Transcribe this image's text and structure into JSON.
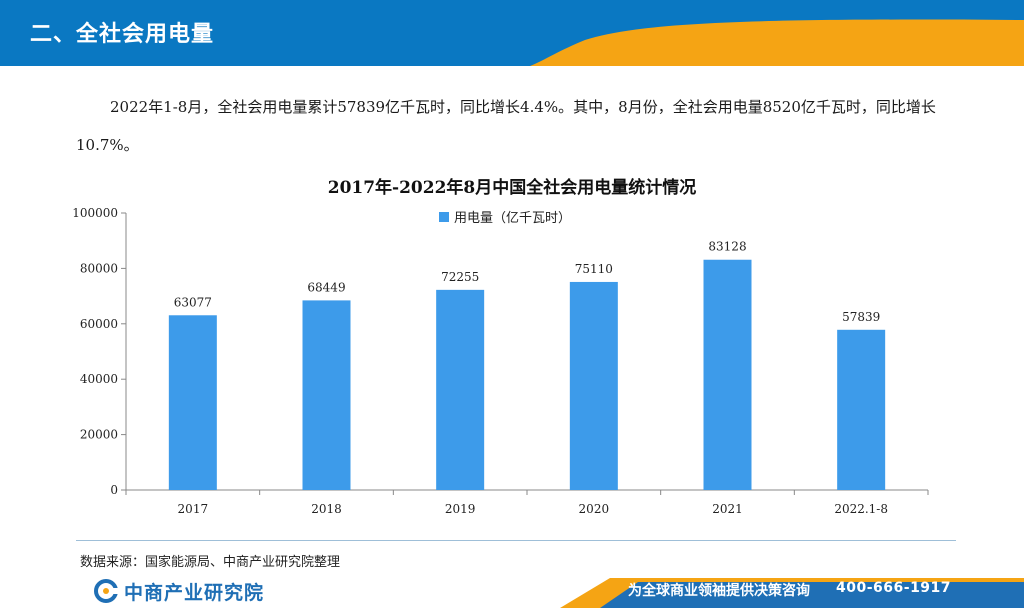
{
  "header": {
    "title": "二、全社会用电量",
    "colors": {
      "blue": "#0a78c2",
      "orange": "#f5a414"
    }
  },
  "paragraph": {
    "text": "2022年1-8月，全社会用电量累计57839亿千瓦时，同比增长4.4%。其中，8月份，全社会用电量8520亿千瓦时，同比增长10.7%。"
  },
  "chart_data": {
    "type": "bar",
    "title": "2017年-2022年8月中国全社会用电量统计情况",
    "categories": [
      "2017",
      "2018",
      "2019",
      "2020",
      "2021",
      "2022.1-8"
    ],
    "series": [
      {
        "name": "用电量（亿千瓦时）",
        "values": [
          63077,
          68449,
          72255,
          75110,
          83128,
          57839
        ],
        "color": "#3d9bea"
      }
    ],
    "yticks": [
      "0",
      "20000",
      "40000",
      "60000",
      "80000",
      "100000"
    ],
    "ylim": [
      0,
      100000
    ],
    "legend_position": "top-center",
    "grid": false,
    "data_labels": true
  },
  "source": {
    "text": "数据来源：国家能源局、中商产业研究院整理"
  },
  "footer": {
    "logo_text": "中商产业研究院",
    "slogan": "为全球商业领袖提供决策咨询",
    "hotline": "400-666-1917",
    "logo_icon": "company-logo-icon",
    "colors": {
      "blue": "#1f6fb5",
      "orange": "#f5a414"
    }
  }
}
